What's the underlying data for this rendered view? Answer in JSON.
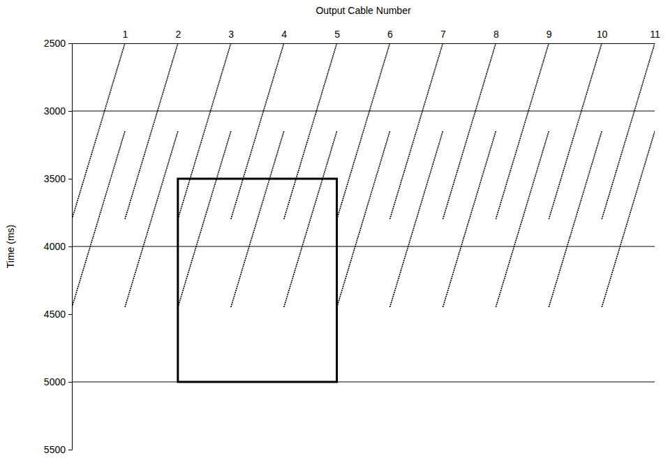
{
  "chart_data": {
    "type": "seismic",
    "x_label": "Output Cable Number",
    "y_label": "Time (ms)",
    "xlim": [
      0,
      11
    ],
    "xticks": [
      1,
      2,
      3,
      4,
      5,
      6,
      7,
      8,
      9,
      10,
      11
    ],
    "ylim": [
      2500,
      5500
    ],
    "yticks": [
      2500,
      3000,
      3500,
      4000,
      4500,
      5000,
      5500
    ],
    "reference_lines": [
      3000,
      4000,
      5000
    ],
    "box": {
      "x": [
        2,
        5
      ],
      "y": [
        3500,
        5000
      ]
    },
    "events": [
      {
        "x": [
          1,
          0
        ],
        "y": [
          2500,
          3800
        ]
      },
      {
        "x": [
          2,
          1
        ],
        "y": [
          2500,
          3800
        ]
      },
      {
        "x": [
          3,
          2
        ],
        "y": [
          2500,
          3800
        ]
      },
      {
        "x": [
          4,
          3
        ],
        "y": [
          2500,
          3800
        ]
      },
      {
        "x": [
          5,
          4
        ],
        "y": [
          2500,
          3800
        ]
      },
      {
        "x": [
          6,
          5
        ],
        "y": [
          2500,
          3800
        ]
      },
      {
        "x": [
          7,
          6
        ],
        "y": [
          2500,
          3800
        ]
      },
      {
        "x": [
          8,
          7
        ],
        "y": [
          2500,
          3800
        ]
      },
      {
        "x": [
          9,
          8
        ],
        "y": [
          2500,
          3800
        ]
      },
      {
        "x": [
          10,
          9
        ],
        "y": [
          2500,
          3800
        ]
      },
      {
        "x": [
          11,
          10
        ],
        "y": [
          2500,
          3800
        ]
      },
      {
        "x": [
          1,
          0
        ],
        "y": [
          3150,
          4450
        ]
      },
      {
        "x": [
          2,
          1
        ],
        "y": [
          3150,
          4450
        ]
      },
      {
        "x": [
          3,
          2
        ],
        "y": [
          3150,
          4450
        ]
      },
      {
        "x": [
          4,
          3
        ],
        "y": [
          3150,
          4450
        ]
      },
      {
        "x": [
          5,
          4
        ],
        "y": [
          3150,
          4450
        ]
      },
      {
        "x": [
          6,
          5
        ],
        "y": [
          3150,
          4450
        ]
      },
      {
        "x": [
          7,
          6
        ],
        "y": [
          3150,
          4450
        ]
      },
      {
        "x": [
          8,
          7
        ],
        "y": [
          3150,
          4450
        ]
      },
      {
        "x": [
          9,
          8
        ],
        "y": [
          3150,
          4450
        ]
      },
      {
        "x": [
          10,
          9
        ],
        "y": [
          3150,
          4450
        ]
      },
      {
        "x": [
          11,
          10
        ],
        "y": [
          3150,
          4450
        ]
      }
    ]
  }
}
